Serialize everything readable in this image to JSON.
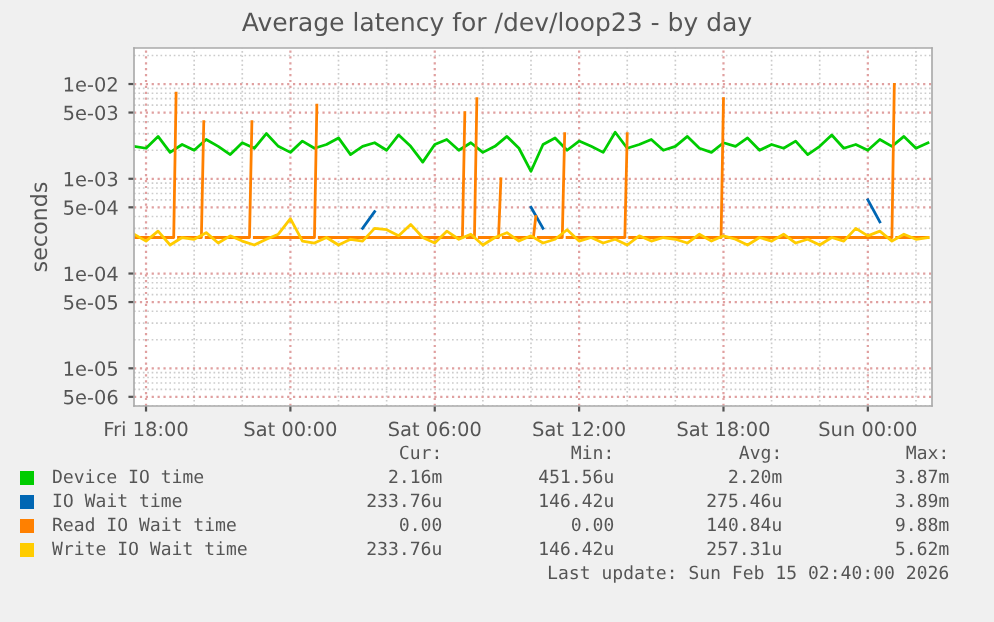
{
  "chart_data": {
    "type": "line",
    "title": "Average latency for /dev/loop23 - by day",
    "ylabel": "seconds",
    "log": true,
    "grid": true,
    "legend": "bottom",
    "xlim": [
      "2026-02-13T17:30",
      "2026-02-15T02:40"
    ],
    "xticks": [
      {
        "value": "2026-02-13T18:00",
        "label": "Fri 18:00"
      },
      {
        "value": "2026-02-14T00:00",
        "label": "Sat 00:00"
      },
      {
        "value": "2026-02-14T06:00",
        "label": "Sat 06:00"
      },
      {
        "value": "2026-02-14T12:00",
        "label": "Sat 12:00"
      },
      {
        "value": "2026-02-14T18:00",
        "label": "Sat 18:00"
      },
      {
        "value": "2026-02-15T00:00",
        "label": "Sun 00:00"
      }
    ],
    "ylim": [
      4e-06,
      0.024
    ],
    "yticks": [
      {
        "value": 5e-06,
        "label": "5e-06"
      },
      {
        "value": 1e-05,
        "label": "1e-05"
      },
      {
        "value": 5e-05,
        "label": "5e-05"
      },
      {
        "value": 0.0001,
        "label": "1e-04"
      },
      {
        "value": 0.0005,
        "label": "5e-04"
      },
      {
        "value": 0.001,
        "label": "1e-03"
      },
      {
        "value": 0.005,
        "label": "5e-03"
      },
      {
        "value": 0.01,
        "label": "1e-02"
      }
    ],
    "x": [
      "2026-02-13T17:30",
      "2026-02-13T18:00",
      "2026-02-13T18:30",
      "2026-02-13T19:00",
      "2026-02-13T19:30",
      "2026-02-13T20:00",
      "2026-02-13T20:30",
      "2026-02-13T21:00",
      "2026-02-13T21:30",
      "2026-02-13T22:00",
      "2026-02-13T22:30",
      "2026-02-13T23:00",
      "2026-02-13T23:30",
      "2026-02-14T00:00",
      "2026-02-14T00:30",
      "2026-02-14T01:00",
      "2026-02-14T01:30",
      "2026-02-14T02:00",
      "2026-02-14T02:30",
      "2026-02-14T03:00",
      "2026-02-14T03:30",
      "2026-02-14T04:00",
      "2026-02-14T04:30",
      "2026-02-14T05:00",
      "2026-02-14T05:30",
      "2026-02-14T06:00",
      "2026-02-14T06:30",
      "2026-02-14T07:00",
      "2026-02-14T07:30",
      "2026-02-14T08:00",
      "2026-02-14T08:30",
      "2026-02-14T09:00",
      "2026-02-14T09:30",
      "2026-02-14T10:00",
      "2026-02-14T10:30",
      "2026-02-14T11:00",
      "2026-02-14T11:30",
      "2026-02-14T12:00",
      "2026-02-14T12:30",
      "2026-02-14T13:00",
      "2026-02-14T13:30",
      "2026-02-14T14:00",
      "2026-02-14T14:30",
      "2026-02-14T15:00",
      "2026-02-14T15:30",
      "2026-02-14T16:00",
      "2026-02-14T16:30",
      "2026-02-14T17:00",
      "2026-02-14T17:30",
      "2026-02-14T18:00",
      "2026-02-14T18:30",
      "2026-02-14T19:00",
      "2026-02-14T19:30",
      "2026-02-14T20:00",
      "2026-02-14T20:30",
      "2026-02-14T21:00",
      "2026-02-14T21:30",
      "2026-02-14T22:00",
      "2026-02-14T22:30",
      "2026-02-14T23:00",
      "2026-02-14T23:30",
      "2026-02-15T00:00",
      "2026-02-15T00:30",
      "2026-02-15T01:00",
      "2026-02-15T01:30",
      "2026-02-15T02:00",
      "2026-02-15T02:30"
    ],
    "annotations": [
      "Cur:",
      "Min:",
      "Avg:",
      "Max:",
      "2.16m",
      "451.56u",
      "2.20m",
      "3.87m",
      "233.76u",
      "146.42u",
      "275.46u",
      "3.89m",
      "0.00",
      "0.00",
      "140.84u",
      "9.88m",
      "233.76u",
      "146.42u",
      "257.31u",
      "5.62m",
      "Last update: Sun Feb 15 02:40:00 2026"
    ],
    "series": [
      {
        "name": "Device IO time",
        "color": "#00cc00",
        "values": [
          0.0022,
          0.0021,
          0.0028,
          0.0019,
          0.0023,
          0.002,
          0.0026,
          0.0022,
          0.0018,
          0.0024,
          0.0021,
          0.003,
          0.0022,
          0.0019,
          0.0025,
          0.0021,
          0.0023,
          0.0027,
          0.0018,
          0.0022,
          0.0024,
          0.002,
          0.0029,
          0.0022,
          0.0015,
          0.0023,
          0.0026,
          0.002,
          0.0024,
          0.0019,
          0.0022,
          0.0028,
          0.0021,
          0.0012,
          0.0023,
          0.0027,
          0.002,
          0.0025,
          0.0022,
          0.0019,
          0.0031,
          0.0021,
          0.0023,
          0.0026,
          0.002,
          0.0022,
          0.0028,
          0.0021,
          0.0019,
          0.0024,
          0.0022,
          0.0027,
          0.002,
          0.0023,
          0.0021,
          0.0025,
          0.0018,
          0.0022,
          0.0029,
          0.0021,
          0.0023,
          0.002,
          0.0026,
          0.0022,
          0.0028,
          0.0021,
          0.0024
        ]
      },
      {
        "name": "IO Wait time",
        "color": "#0066b3",
        "values": [
          null,
          null,
          null,
          null,
          null,
          null,
          null,
          null,
          null,
          null,
          null,
          null,
          null,
          null,
          null,
          null,
          null,
          null,
          null,
          0.0003,
          0.00045,
          null,
          null,
          null,
          null,
          null,
          null,
          null,
          null,
          null,
          null,
          null,
          null,
          0.0005,
          0.0003,
          null,
          null,
          null,
          null,
          null,
          null,
          null,
          null,
          null,
          null,
          null,
          null,
          null,
          null,
          null,
          null,
          null,
          null,
          null,
          null,
          null,
          null,
          null,
          null,
          null,
          null,
          0.0006,
          0.00035,
          null,
          null,
          null,
          null
        ]
      },
      {
        "name": "Read IO Wait time",
        "color": "#ff8000",
        "x": [
          "2026-02-13T17:30",
          "2026-02-13T19:09",
          "2026-02-13T19:15",
          "2026-02-13T19:18",
          "2026-02-13T19:21",
          "2026-02-13T20:18",
          "2026-02-13T20:24",
          "2026-02-13T20:27",
          "2026-02-13T20:30",
          "2026-02-13T22:18",
          "2026-02-13T22:24",
          "2026-02-13T22:27",
          "2026-02-13T22:30",
          "2026-02-14T01:00",
          "2026-02-14T01:06",
          "2026-02-14T01:09",
          "2026-02-14T01:12",
          "2026-02-14T07:09",
          "2026-02-14T07:15",
          "2026-02-14T07:18",
          "2026-02-14T07:21",
          "2026-02-14T07:39",
          "2026-02-14T07:45",
          "2026-02-14T07:48",
          "2026-02-14T07:51",
          "2026-02-14T08:39",
          "2026-02-14T08:45",
          "2026-02-14T08:48",
          "2026-02-14T08:51",
          "2026-02-14T10:06",
          "2026-02-14T10:12",
          "2026-02-14T10:15",
          "2026-02-14T10:18",
          "2026-02-14T11:18",
          "2026-02-14T11:24",
          "2026-02-14T11:27",
          "2026-02-14T11:30",
          "2026-02-14T13:54",
          "2026-02-14T14:00",
          "2026-02-14T14:03",
          "2026-02-14T14:06",
          "2026-02-14T17:54",
          "2026-02-14T18:00",
          "2026-02-14T18:03",
          "2026-02-14T18:06",
          "2026-02-15T01:00",
          "2026-02-15T01:06",
          "2026-02-15T01:09",
          "2026-02-15T01:12",
          "2026-02-15T02:30"
        ],
        "values": [
          0.00024,
          0.00024,
          0.008,
          null,
          0.00024,
          0.00024,
          0.004,
          null,
          0.00024,
          0.00024,
          0.004,
          null,
          0.00024,
          0.00024,
          0.006,
          null,
          0.00024,
          0.00024,
          0.005,
          null,
          0.00024,
          0.00024,
          0.007,
          null,
          0.00024,
          0.00024,
          0.001,
          null,
          0.00024,
          0.00024,
          0.0004,
          null,
          0.00024,
          0.00024,
          0.003,
          null,
          0.00024,
          0.00024,
          0.003,
          null,
          0.00024,
          0.00024,
          0.007,
          null,
          0.00024,
          0.00024,
          0.0099,
          null,
          0.00024,
          0.00024
        ]
      },
      {
        "name": "Write IO Wait time",
        "color": "#ffcc00",
        "values": [
          0.00026,
          0.00022,
          0.00028,
          0.0002,
          0.00024,
          0.00023,
          0.00027,
          0.00021,
          0.00025,
          0.00022,
          0.0002,
          0.00023,
          0.00026,
          0.00038,
          0.00022,
          0.00021,
          0.00024,
          0.0002,
          0.00023,
          0.00022,
          0.0003,
          0.00029,
          0.00025,
          0.00033,
          0.00024,
          0.00021,
          0.00028,
          0.00023,
          0.00026,
          0.0002,
          0.00024,
          0.00027,
          0.00022,
          0.00025,
          0.00021,
          0.00023,
          0.00029,
          0.00022,
          0.00024,
          0.00021,
          0.00023,
          0.0002,
          0.00025,
          0.00022,
          0.00024,
          0.00023,
          0.00021,
          0.00026,
          0.00022,
          0.00025,
          0.00023,
          0.0002,
          0.00024,
          0.00022,
          0.00026,
          0.00021,
          0.00023,
          0.0002,
          0.00024,
          0.00022,
          0.0003,
          0.00025,
          0.00028,
          0.00022,
          0.00026,
          0.00023,
          0.00024
        ]
      }
    ]
  }
}
